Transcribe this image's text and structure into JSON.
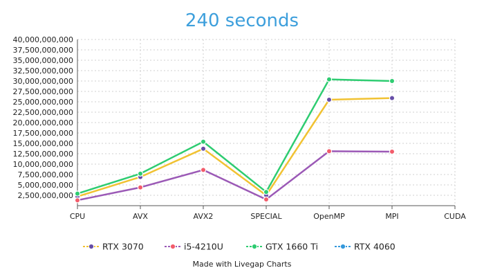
{
  "chart_data": {
    "type": "line",
    "title": "240 seconds",
    "credit": "Made with Livegap Charts",
    "categories": [
      "CPU",
      "AVX",
      "AVX2",
      "SPECIAL",
      "OpenMP",
      "MPI",
      "CUDA"
    ],
    "ylim": [
      0,
      40000000000
    ],
    "yticks": [
      2500000000,
      5000000000,
      7500000000,
      10000000000,
      12500000000,
      15000000000,
      17500000000,
      20000000000,
      22500000000,
      25000000000,
      27500000000,
      30000000000,
      32500000000,
      35000000000,
      37500000000,
      40000000000
    ],
    "ytick_labels": [
      "2,500,000,000",
      "5,000,000,000",
      "7,500,000,000",
      "10,000,000,000",
      "12,500,000,000",
      "15,000,000,000",
      "17,500,000,000",
      "20,000,000,000",
      "22,500,000,000",
      "25,000,000,000",
      "27,500,000,000",
      "30,000,000,000",
      "32,500,000,000",
      "35,000,000,000",
      "37,500,000,000",
      "40,000,000,000"
    ],
    "grid": true,
    "legend_position": "bottom",
    "series": [
      {
        "name": "RTX 3070",
        "line_color": "#f1c232",
        "marker_color": "#674ea7",
        "values": [
          2200000000,
          6900000000,
          13700000000,
          2500000000,
          25500000000,
          25900000000,
          null
        ]
      },
      {
        "name": "i5-4210U",
        "line_color": "#9b59b6",
        "marker_color": "#f25c6b",
        "values": [
          1300000000,
          4400000000,
          8600000000,
          1500000000,
          13100000000,
          13000000000,
          null
        ]
      },
      {
        "name": "GTX 1660 Ti",
        "line_color": "#2ecc71",
        "marker_color": "#2ecc71",
        "values": [
          2900000000,
          7700000000,
          15400000000,
          3300000000,
          30400000000,
          30000000000,
          null
        ]
      },
      {
        "name": "RTX 4060",
        "line_color": "#3498db",
        "marker_color": "#3498db",
        "values": [
          null,
          null,
          null,
          null,
          null,
          null,
          null
        ]
      }
    ]
  }
}
